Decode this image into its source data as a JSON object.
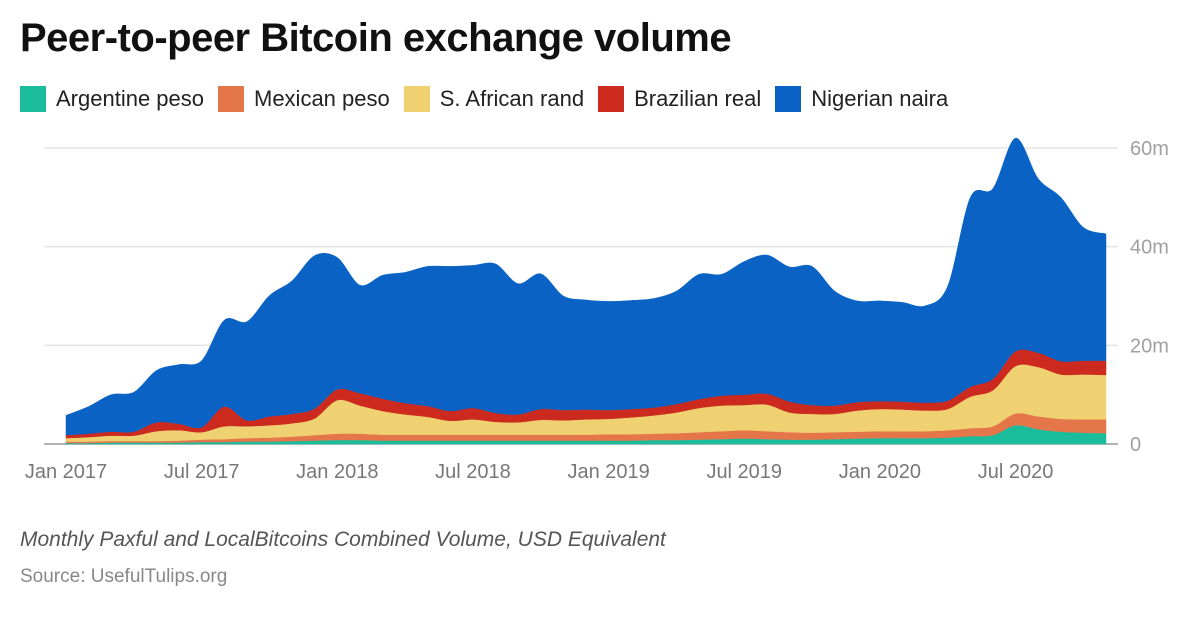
{
  "header": {
    "title": "Peer-to-peer Bitcoin exchange volume"
  },
  "footer": {
    "subtitle": "Monthly Paxful and LocalBitcoins Combined Volume, USD Equivalent",
    "source": "Source: UsefulTulips.org"
  },
  "chart_data": {
    "type": "area",
    "stacked": true,
    "title": "Peer-to-peer Bitcoin exchange volume",
    "subtitle": "Monthly Paxful and LocalBitcoins Combined Volume, USD Equivalent",
    "ylim": [
      0,
      60
    ],
    "y_ticks": [
      0,
      20,
      40,
      60
    ],
    "y_tick_labels": [
      "0",
      "20m",
      "40m",
      "60m"
    ],
    "y_axis_side": "right",
    "grid": true,
    "legend_position": "top",
    "x": [
      "2017-01",
      "2017-02",
      "2017-03",
      "2017-04",
      "2017-05",
      "2017-06",
      "2017-07",
      "2017-08",
      "2017-09",
      "2017-10",
      "2017-11",
      "2017-12",
      "2018-01",
      "2018-02",
      "2018-03",
      "2018-04",
      "2018-05",
      "2018-06",
      "2018-07",
      "2018-08",
      "2018-09",
      "2018-10",
      "2018-11",
      "2018-12",
      "2019-01",
      "2019-02",
      "2019-03",
      "2019-04",
      "2019-05",
      "2019-06",
      "2019-07",
      "2019-08",
      "2019-09",
      "2019-10",
      "2019-11",
      "2019-12",
      "2020-01",
      "2020-02",
      "2020-03",
      "2020-04",
      "2020-05",
      "2020-06",
      "2020-07",
      "2020-08",
      "2020-09",
      "2020-10",
      "2020-11"
    ],
    "x_tick_labels": [
      {
        "x": "2017-01",
        "label": "Jan 2017"
      },
      {
        "x": "2017-07",
        "label": "Jul 2017"
      },
      {
        "x": "2018-01",
        "label": "Jan 2018"
      },
      {
        "x": "2018-07",
        "label": "Jul 2018"
      },
      {
        "x": "2019-01",
        "label": "Jan 2019"
      },
      {
        "x": "2019-07",
        "label": "Jul 2019"
      },
      {
        "x": "2020-01",
        "label": "Jan 2020"
      },
      {
        "x": "2020-07",
        "label": "Jul 2020"
      }
    ],
    "series": [
      {
        "name": "Argentine peso",
        "color": "#1abc9c",
        "values": [
          0.2,
          0.2,
          0.3,
          0.3,
          0.3,
          0.3,
          0.4,
          0.4,
          0.5,
          0.5,
          0.6,
          0.7,
          0.8,
          0.8,
          0.7,
          0.7,
          0.7,
          0.7,
          0.7,
          0.7,
          0.7,
          0.7,
          0.7,
          0.7,
          0.7,
          0.7,
          0.8,
          0.8,
          0.9,
          1.0,
          1.1,
          1.0,
          0.9,
          0.9,
          1.0,
          1.1,
          1.2,
          1.2,
          1.2,
          1.3,
          1.6,
          1.8,
          3.8,
          3.0,
          2.5,
          2.3,
          2.2
        ]
      },
      {
        "name": "Mexican peso",
        "color": "#e5764a",
        "values": [
          0.3,
          0.3,
          0.3,
          0.3,
          0.3,
          0.4,
          0.5,
          0.6,
          0.7,
          0.8,
          0.9,
          1.1,
          1.3,
          1.3,
          1.2,
          1.2,
          1.2,
          1.2,
          1.2,
          1.2,
          1.2,
          1.2,
          1.2,
          1.2,
          1.3,
          1.3,
          1.3,
          1.4,
          1.5,
          1.6,
          1.7,
          1.6,
          1.5,
          1.4,
          1.4,
          1.4,
          1.4,
          1.4,
          1.4,
          1.5,
          1.6,
          1.8,
          2.4,
          2.6,
          2.6,
          2.7,
          2.8
        ]
      },
      {
        "name": "S. African rand",
        "color": "#f0d171",
        "values": [
          0.7,
          0.9,
          1.1,
          1.1,
          2.0,
          2.1,
          1.5,
          2.6,
          2.4,
          2.5,
          2.7,
          3.4,
          6.8,
          5.7,
          4.8,
          4.1,
          3.6,
          2.8,
          3.1,
          2.6,
          2.5,
          3.0,
          2.9,
          3.1,
          3.1,
          3.4,
          3.7,
          4.2,
          4.9,
          5.2,
          5.1,
          5.4,
          4.0,
          3.8,
          3.7,
          4.3,
          4.5,
          4.4,
          4.2,
          4.3,
          6.4,
          7.3,
          9.6,
          10.0,
          9.0,
          9.1,
          9.0
        ]
      },
      {
        "name": "Brazilian real",
        "color": "#cc2a1f",
        "values": [
          0.6,
          0.7,
          0.8,
          0.8,
          1.8,
          1.3,
          1.0,
          4.0,
          1.2,
          1.8,
          1.9,
          2.0,
          2.2,
          2.5,
          2.5,
          2.3,
          2.2,
          2.0,
          2.3,
          1.8,
          1.6,
          2.2,
          2.1,
          2.0,
          1.8,
          1.7,
          1.6,
          1.7,
          1.8,
          2.0,
          2.1,
          2.2,
          2.2,
          1.8,
          1.7,
          1.7,
          1.6,
          1.6,
          1.6,
          1.7,
          2.0,
          2.3,
          3.0,
          2.9,
          2.7,
          2.8,
          2.9
        ]
      },
      {
        "name": "Nigerian naira",
        "color": "#0a63c4",
        "values": [
          4.0,
          5.5,
          7.5,
          8.0,
          10.5,
          12.0,
          13.5,
          17.5,
          20.0,
          24.5,
          27.0,
          31.0,
          26.7,
          21.9,
          25.0,
          26.5,
          28.3,
          29.3,
          28.9,
          30.2,
          26.5,
          27.4,
          23.1,
          22.2,
          22.0,
          22.0,
          22.1,
          22.9,
          25.3,
          24.6,
          27.0,
          28.1,
          27.3,
          28.1,
          23.2,
          20.5,
          20.3,
          20.1,
          19.6,
          23.2,
          38.4,
          38.6,
          43.2,
          35.3,
          33.2,
          27.0,
          25.7
        ]
      }
    ]
  }
}
